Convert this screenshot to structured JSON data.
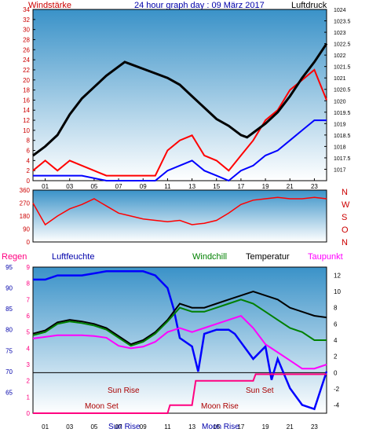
{
  "header": {
    "left_label": "Windstärke",
    "title": "24 hour graph day : 09 März 2017",
    "right_label": "Luftdruck"
  },
  "colors": {
    "wind": "#ff0000",
    "gust_blue": "#0000ff",
    "pressure": "#000000",
    "wind_dir": "#ff0000",
    "humidity": "#0000ff",
    "windchill": "#008000",
    "temperature": "#000000",
    "dewpoint": "#ff00ff",
    "rain": "#ff0080",
    "sun_moon_text": "#aa0000",
    "axis_red": "#cc0000"
  },
  "x_ticks": [
    "01",
    "03",
    "05",
    "07",
    "09",
    "11",
    "13",
    "15",
    "17",
    "19",
    "21",
    "23"
  ],
  "chart_data": [
    {
      "type": "line",
      "title": "24 hour graph day : 09 März 2017",
      "x_range": [
        0,
        24
      ],
      "left_axis": {
        "label": "Windstärke",
        "range": [
          0,
          34
        ],
        "ticks": [
          "0",
          "2",
          "4",
          "6",
          "8",
          "10",
          "12",
          "14",
          "16",
          "18",
          "20",
          "22",
          "24",
          "26",
          "28",
          "30",
          "32",
          "34"
        ]
      },
      "right_axis": {
        "label": "Luftdruck",
        "range": [
          1016.5,
          1024
        ],
        "ticks": [
          "1017",
          "1017.5",
          "1018",
          "1018.5",
          "1019",
          "1019.5",
          "1020",
          "1020.5",
          "1021",
          "1021.5",
          "1022",
          "1022.5",
          "1023",
          "1023.5",
          "1024"
        ]
      },
      "series": [
        {
          "name": "Luftdruck",
          "axis": "right",
          "x": [
            0,
            1,
            2,
            3,
            4,
            5,
            6,
            7,
            7.5,
            8,
            9,
            10,
            11,
            12,
            13,
            14,
            15,
            16,
            17,
            17.5,
            18,
            19,
            20,
            21,
            22,
            23,
            24
          ],
          "y": [
            1017.6,
            1018,
            1018.5,
            1019.4,
            1020.1,
            1020.6,
            1021.1,
            1021.5,
            1021.7,
            1021.6,
            1021.4,
            1021.2,
            1021.0,
            1020.7,
            1020.2,
            1019.7,
            1019.2,
            1018.9,
            1018.5,
            1018.4,
            1018.6,
            1019.0,
            1019.5,
            1020.2,
            1021.0,
            1021.7,
            1022.5
          ]
        },
        {
          "name": "wind",
          "axis": "left",
          "x": [
            0,
            1,
            2,
            3,
            4,
            5,
            6,
            7,
            8,
            9,
            10,
            11,
            12,
            13,
            14,
            15,
            16,
            17,
            18,
            19,
            20,
            21,
            22,
            23,
            24
          ],
          "y": [
            2,
            4,
            2,
            4,
            3,
            2,
            1,
            1,
            1,
            1,
            1,
            6,
            8,
            9,
            5,
            4,
            2,
            5,
            8,
            12,
            14,
            18,
            20,
            22,
            16
          ]
        },
        {
          "name": "gust",
          "axis": "left",
          "x": [
            0,
            2,
            4,
            6,
            8,
            10,
            11,
            12,
            13,
            14,
            15,
            16,
            17,
            18,
            19,
            20,
            21,
            22,
            23,
            24
          ],
          "y": [
            1,
            1,
            1,
            0,
            0,
            0,
            2,
            3,
            4,
            2,
            1,
            0,
            2,
            3,
            5,
            6,
            8,
            10,
            12,
            12
          ]
        }
      ]
    },
    {
      "type": "scatter",
      "axis_label_right": [
        "N",
        "W",
        "S",
        "O",
        "N"
      ],
      "left_axis": {
        "range": [
          0,
          360
        ],
        "ticks": [
          "0",
          "90",
          "180",
          "270",
          "360"
        ]
      },
      "series": [
        {
          "name": "wind direction",
          "x": [
            0,
            1,
            2,
            3,
            4,
            5,
            6,
            7,
            8,
            9,
            10,
            11,
            12,
            13,
            14,
            15,
            16,
            17,
            18,
            19,
            20,
            21,
            22,
            23,
            24
          ],
          "y": [
            270,
            120,
            180,
            230,
            260,
            300,
            250,
            200,
            180,
            160,
            150,
            140,
            150,
            120,
            130,
            150,
            200,
            260,
            290,
            300,
            310,
            300,
            300,
            310,
            300
          ]
        }
      ]
    },
    {
      "type": "line",
      "left_axis_rain": {
        "label": "Regen",
        "range": [
          0,
          9
        ],
        "ticks": [
          "0",
          "1",
          "2",
          "3",
          "4",
          "5",
          "6",
          "7",
          "8",
          "9"
        ]
      },
      "left_axis_humidity": {
        "label": "Luftfeuchte",
        "range": [
          60,
          95
        ],
        "ticks": [
          "65",
          "70",
          "75",
          "80",
          "85",
          "90",
          "95"
        ]
      },
      "right_axis": {
        "label": "Temperatur",
        "range": [
          -5,
          13
        ],
        "ticks": [
          "-4",
          "-2",
          "0",
          "2",
          "4",
          "6",
          "8",
          "10",
          "12"
        ]
      },
      "legend": [
        "Windchill",
        "Temperatur",
        "Taupunkt"
      ],
      "series": [
        {
          "name": "Luftfeuchte",
          "axis": "humidity",
          "x": [
            0,
            1,
            2,
            3,
            4,
            5,
            6,
            7,
            8,
            9,
            10,
            11,
            11.5,
            12,
            13,
            13.5,
            14,
            15,
            16,
            16.5,
            17,
            18,
            19,
            19.5,
            20,
            21,
            22,
            23,
            24
          ],
          "y": [
            92,
            92,
            93,
            93,
            93,
            93.5,
            94,
            94,
            94,
            94,
            93,
            90,
            85,
            78,
            76,
            70,
            79,
            80,
            80,
            79,
            77,
            73,
            76,
            68,
            73,
            66,
            62,
            61,
            70
          ]
        },
        {
          "name": "Temperatur",
          "axis": "right",
          "x": [
            0,
            1,
            2,
            3,
            4,
            5,
            6,
            7,
            8,
            9,
            10,
            11,
            12,
            13,
            14,
            15,
            16,
            17,
            18,
            19,
            20,
            21,
            22,
            23,
            24
          ],
          "y": [
            4.8,
            5.2,
            6.2,
            6.5,
            6.3,
            6.0,
            5.5,
            4.5,
            3.5,
            4.0,
            5.0,
            6.5,
            8.5,
            8.0,
            8.0,
            8.5,
            9.0,
            9.5,
            10.0,
            9.5,
            9.0,
            8.0,
            7.5,
            7.0,
            6.8
          ]
        },
        {
          "name": "Windchill",
          "axis": "right",
          "x": [
            0,
            1,
            2,
            3,
            4,
            5,
            6,
            7,
            8,
            9,
            10,
            11,
            12,
            13,
            14,
            15,
            16,
            17,
            18,
            19,
            20,
            21,
            22,
            23,
            24
          ],
          "y": [
            4.6,
            5.0,
            6.0,
            6.3,
            6.1,
            5.8,
            5.3,
            4.3,
            3.3,
            3.8,
            4.8,
            6.3,
            8.0,
            7.5,
            7.5,
            8.0,
            8.5,
            9.0,
            8.5,
            7.5,
            6.5,
            5.5,
            5.0,
            4.0,
            4.0
          ]
        },
        {
          "name": "Taupunkt",
          "axis": "right",
          "x": [
            0,
            1,
            2,
            3,
            4,
            5,
            6,
            7,
            8,
            9,
            10,
            11,
            12,
            13,
            14,
            15,
            16,
            17,
            18,
            19,
            20,
            21,
            22,
            23,
            24
          ],
          "y": [
            4.2,
            4.4,
            4.6,
            4.6,
            4.6,
            4.5,
            4.3,
            3.3,
            3.0,
            3.2,
            3.8,
            5.0,
            5.5,
            5.0,
            5.5,
            6.0,
            6.5,
            7.0,
            5.5,
            3.5,
            2.5,
            1.5,
            0.5,
            0.5,
            1.0
          ]
        },
        {
          "name": "Regen",
          "axis": "rain",
          "x": [
            0,
            11,
            11.2,
            13,
            13.3,
            18,
            18.2,
            24
          ],
          "y": [
            0,
            0,
            0.5,
            0.5,
            2,
            2,
            2.4,
            2.4
          ]
        }
      ],
      "annotations": [
        "Sun Rise",
        "Sun Set",
        "Moon Set",
        "Moon Rise",
        "Sun Rise",
        "Moon Rise"
      ]
    }
  ],
  "labels": {
    "rain_axis": "Regen",
    "humidity_axis": "Luftfeuchte",
    "windchill": "Windchill",
    "temperature": "Temperatur",
    "dewpoint": "Taupunkt",
    "sun_rise": "Sun Rise",
    "sun_set": "Sun Set",
    "moon_set": "Moon Set",
    "moon_rise": "Moon Rise",
    "sun_rise_bottom": "Sun Rise",
    "moon_rise_bottom": "Moon Rise",
    "dir_labels": [
      "N",
      "W",
      "S",
      "O",
      "N"
    ]
  }
}
